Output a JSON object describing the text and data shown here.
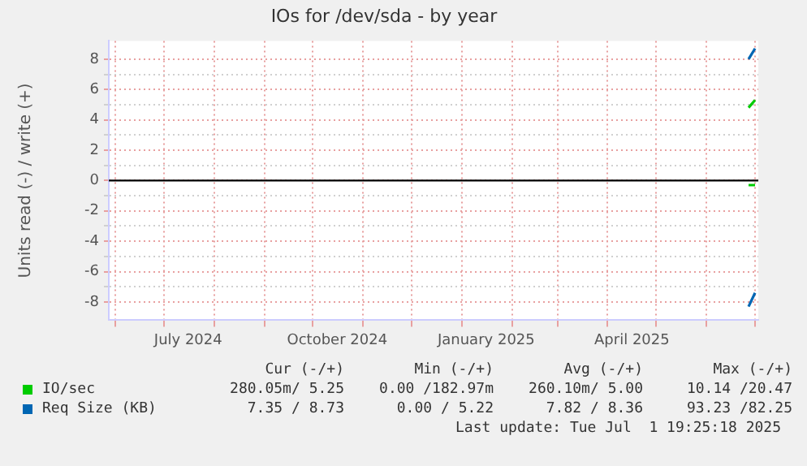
{
  "chart_data": {
    "type": "line",
    "title": "IOs for /dev/sda - by year",
    "ylabel": "Units read (-) / write (+)",
    "x": [
      "2025-06-27",
      "2025-07-01"
    ],
    "series": [
      {
        "name": "IO/sec",
        "color": "#00cc00",
        "values": [
          4.8,
          5.3
        ]
      },
      {
        "color": "#00cc00",
        "values": [
          -0.3,
          -0.3
        ]
      },
      {
        "name": "Req Size (KB)",
        "color": "#0066b3",
        "values": [
          8.0,
          8.7
        ]
      },
      {
        "color": "#0066b3",
        "values": [
          -8.3,
          -7.4
        ]
      }
    ],
    "xlim": [
      "2024-05-28",
      "2025-07-03"
    ],
    "xticks": [
      {
        "value": "2024-06-01",
        "label": null
      },
      {
        "value": "2024-07-01",
        "label": null
      },
      {
        "value": "2024-07-16",
        "label": "July 2024"
      },
      {
        "value": "2024-08-01",
        "label": null
      },
      {
        "value": "2024-09-01",
        "label": null
      },
      {
        "value": "2024-10-01",
        "label": null
      },
      {
        "value": "2024-10-16",
        "label": "October 2024"
      },
      {
        "value": "2024-11-01",
        "label": null
      },
      {
        "value": "2024-12-01",
        "label": null
      },
      {
        "value": "2025-01-01",
        "label": null
      },
      {
        "value": "2025-01-16",
        "label": "January 2025"
      },
      {
        "value": "2025-02-01",
        "label": null
      },
      {
        "value": "2025-03-01",
        "label": null
      },
      {
        "value": "2025-04-01",
        "label": null
      },
      {
        "value": "2025-04-16",
        "label": "April 2025"
      },
      {
        "value": "2025-05-01",
        "label": null
      },
      {
        "value": "2025-06-01",
        "label": null
      },
      {
        "value": "2025-07-01",
        "label": null
      }
    ],
    "ylim": [
      -9.2,
      9.2
    ],
    "yticks": [
      -8,
      {
        "value": -7,
        "label": null
      },
      -6,
      {
        "value": -5,
        "label": null
      },
      -4,
      {
        "value": -3,
        "label": null
      },
      -2,
      {
        "value": -1,
        "label": null
      },
      0,
      {
        "value": 1,
        "label": null
      },
      2,
      {
        "value": 3,
        "label": null
      },
      4,
      {
        "value": 5,
        "label": null
      },
      6,
      {
        "value": 7,
        "label": null
      },
      8
    ],
    "grid": true,
    "ref_lines": [
      {
        "axis": "y",
        "value": 0,
        "color": "#000000"
      }
    ],
    "legend": "bottom",
    "annotations": [
      "Cur (-/+)",
      "Min (-/+)",
      "Avg (-/+)",
      "Max (-/+)",
      "280.05m/ 5.25",
      "0.00 /182.97m",
      "260.10m/ 5.00",
      "10.14 /20.47",
      "7.35 / 8.73",
      "0.00 / 5.22",
      "7.82 / 8.36",
      "93.23 /82.25",
      "Last update: Tue Jul  1 19:25:18 2025"
    ]
  }
}
